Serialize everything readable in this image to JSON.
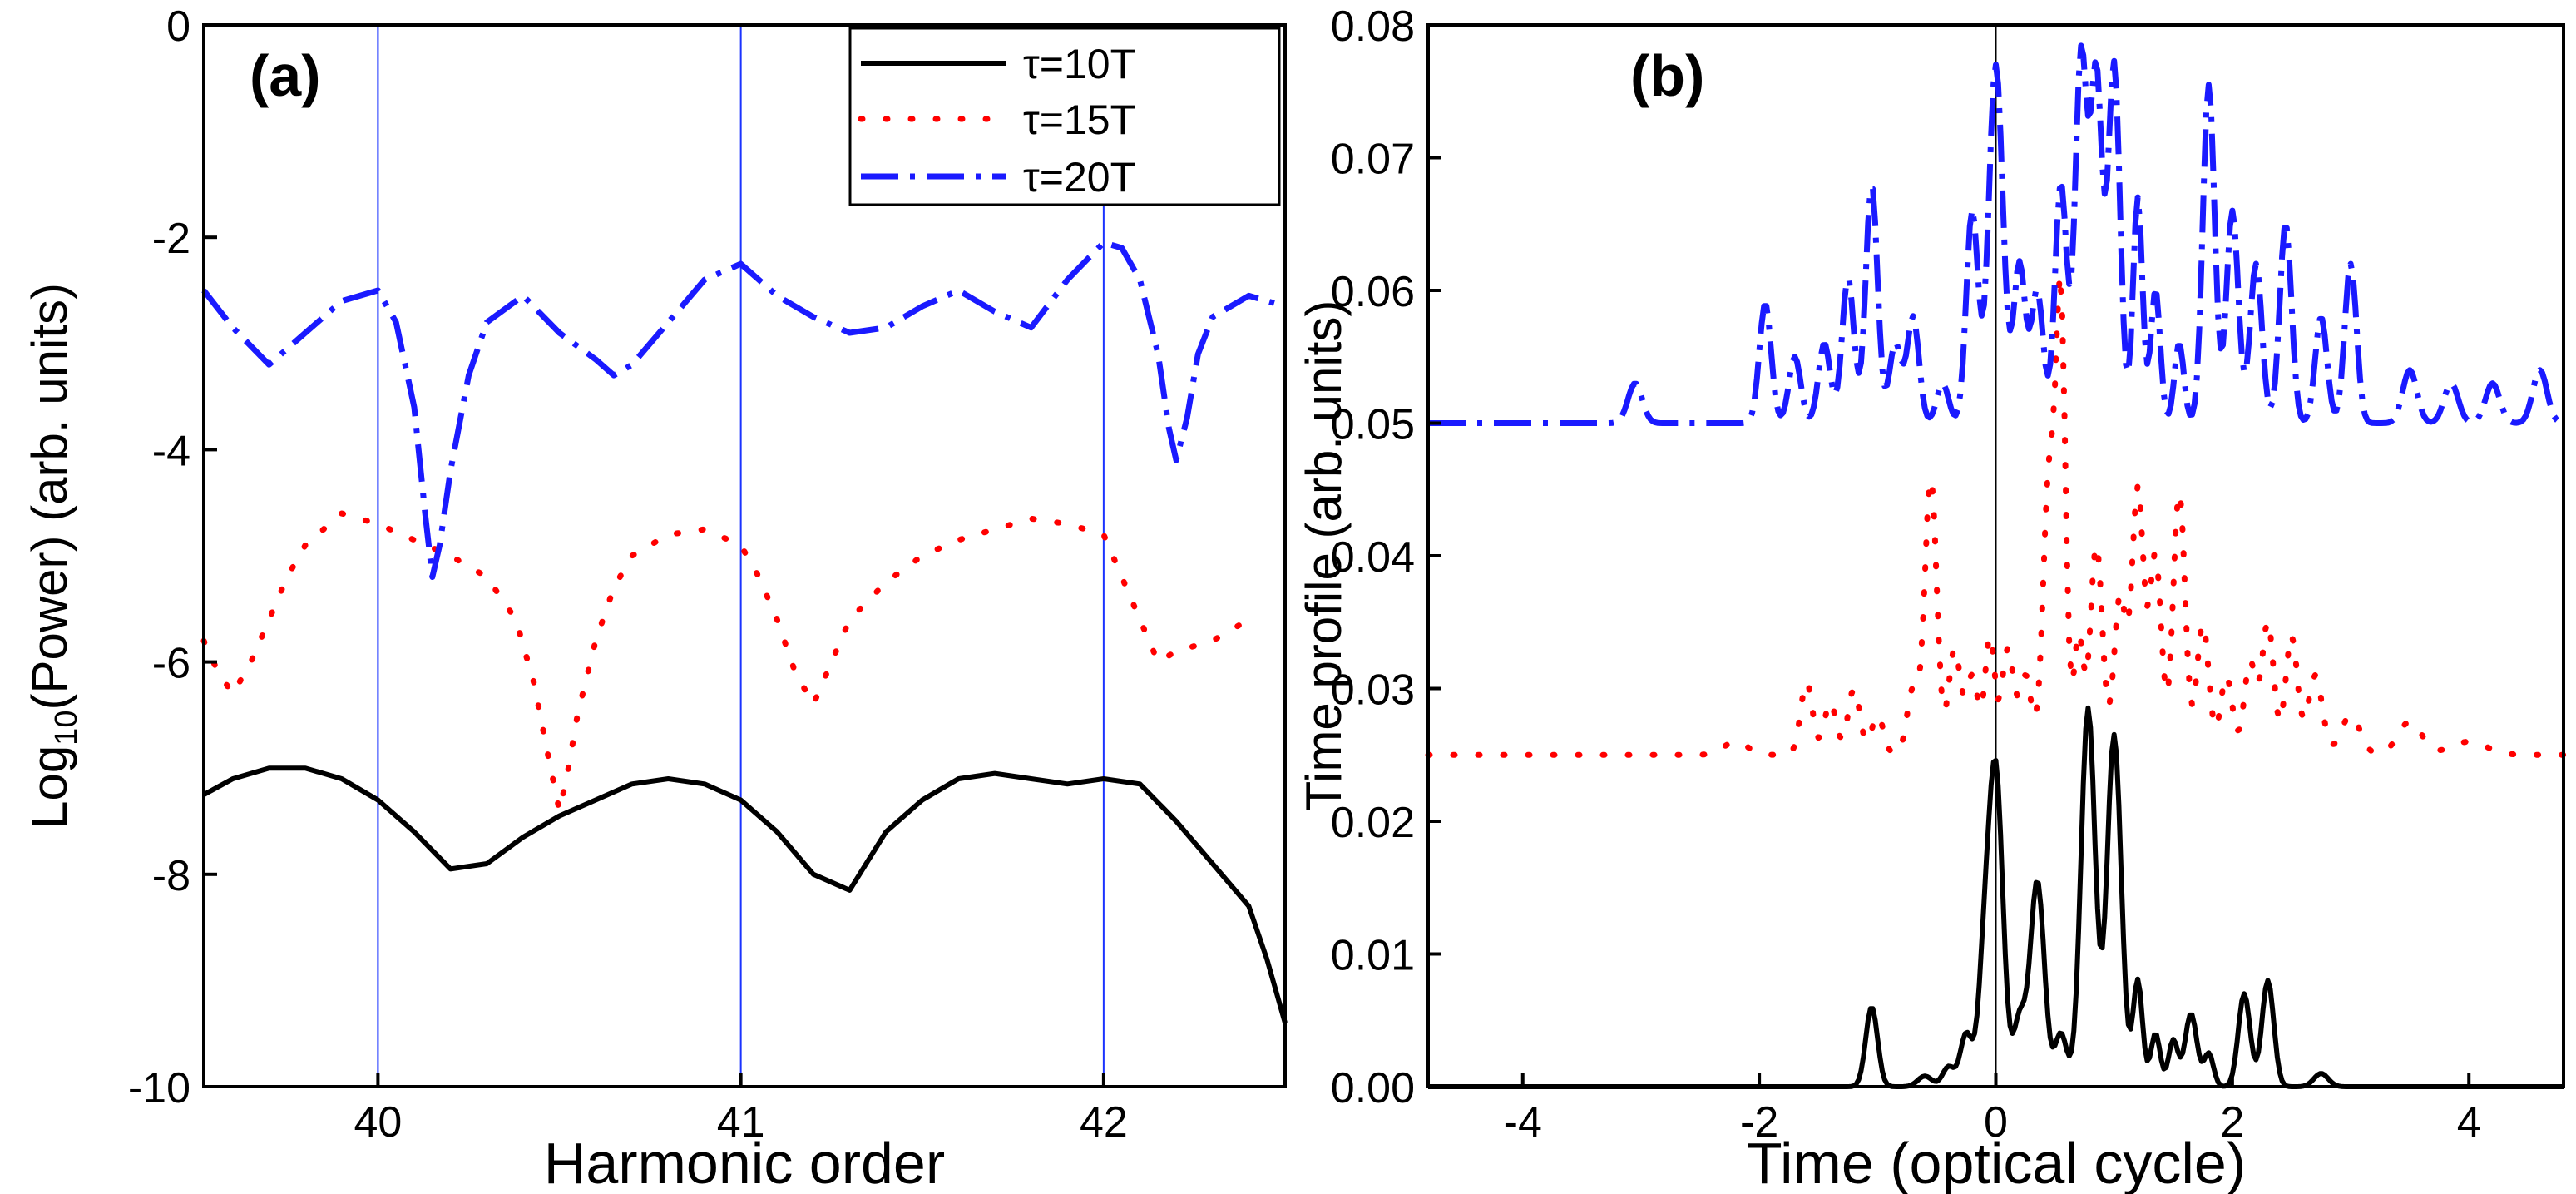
{
  "chart_data": [
    {
      "id": "a",
      "type": "line",
      "panel_label": "(a)",
      "xlabel": "Harmonic order",
      "ylabel": {
        "prefix": "Log",
        "subscript": "10",
        "suffix": "(Power) (arb. units)"
      },
      "xlim": [
        39.52,
        42.5
      ],
      "ylim": [
        -10,
        0
      ],
      "xticks": [
        40,
        41,
        42
      ],
      "yticks": [
        0,
        -2,
        -4,
        -6,
        -8,
        -10
      ],
      "xtick_labels": [
        "40",
        "41",
        "42"
      ],
      "ytick_labels": [
        "0",
        "-2",
        "-4",
        "-6",
        "-8",
        "-10"
      ],
      "reference_lines_x": [
        40,
        41,
        42
      ],
      "reference_line_color": "#1a33ff",
      "legend": {
        "position": "top-right",
        "entries": [
          "τ=10T",
          "τ=15T",
          "τ=20T"
        ]
      },
      "series": [
        {
          "name": "τ=10T",
          "color": "#000000",
          "style": "solid",
          "x": [
            39.52,
            39.6,
            39.7,
            39.8,
            39.9,
            40.0,
            40.1,
            40.2,
            40.3,
            40.4,
            40.5,
            40.6,
            40.7,
            40.8,
            40.9,
            41.0,
            41.1,
            41.2,
            41.3,
            41.4,
            41.5,
            41.6,
            41.7,
            41.8,
            41.9,
            42.0,
            42.1,
            42.2,
            42.3,
            42.4,
            42.45,
            42.5
          ],
          "y": [
            -7.25,
            -7.1,
            -7.0,
            -7.0,
            -7.1,
            -7.3,
            -7.6,
            -7.95,
            -7.9,
            -7.65,
            -7.45,
            -7.3,
            -7.15,
            -7.1,
            -7.15,
            -7.3,
            -7.6,
            -8.0,
            -8.15,
            -7.6,
            -7.3,
            -7.1,
            -7.05,
            -7.1,
            -7.15,
            -7.1,
            -7.15,
            -7.5,
            -7.9,
            -8.3,
            -8.8,
            -9.4
          ]
        },
        {
          "name": "τ=15T",
          "color": "#ff0000",
          "style": "dotted",
          "x": [
            39.52,
            39.56,
            39.6,
            39.65,
            39.7,
            39.75,
            39.8,
            39.9,
            40.0,
            40.1,
            40.2,
            40.3,
            40.38,
            40.43,
            40.47,
            40.5,
            40.52,
            40.55,
            40.6,
            40.65,
            40.7,
            40.8,
            40.9,
            41.0,
            41.05,
            41.1,
            41.15,
            41.2,
            41.25,
            41.3,
            41.4,
            41.5,
            41.6,
            41.7,
            41.8,
            41.9,
            42.0,
            42.05,
            42.1,
            42.15,
            42.2,
            42.3,
            42.4
          ],
          "y": [
            -5.8,
            -6.1,
            -6.3,
            -6.0,
            -5.6,
            -5.2,
            -4.9,
            -4.6,
            -4.7,
            -4.85,
            -5.0,
            -5.2,
            -5.6,
            -6.2,
            -6.9,
            -7.4,
            -7.1,
            -6.5,
            -5.8,
            -5.3,
            -5.0,
            -4.8,
            -4.75,
            -4.9,
            -5.2,
            -5.6,
            -6.1,
            -6.4,
            -6.0,
            -5.6,
            -5.25,
            -5.0,
            -4.85,
            -4.75,
            -4.65,
            -4.7,
            -4.8,
            -5.2,
            -5.6,
            -6.0,
            -5.9,
            -5.8,
            -5.6
          ]
        },
        {
          "name": "τ=20T",
          "color": "#1a1aff",
          "style": "dashdot",
          "x": [
            39.52,
            39.6,
            39.7,
            39.8,
            39.9,
            40.0,
            40.05,
            40.1,
            40.13,
            40.15,
            40.17,
            40.2,
            40.25,
            40.3,
            40.4,
            40.5,
            40.6,
            40.65,
            40.7,
            40.8,
            40.9,
            41.0,
            41.1,
            41.2,
            41.3,
            41.4,
            41.5,
            41.6,
            41.7,
            41.8,
            41.9,
            42.0,
            42.05,
            42.1,
            42.15,
            42.18,
            42.2,
            42.23,
            42.26,
            42.3,
            42.4,
            42.5
          ],
          "y": [
            -2.5,
            -2.85,
            -3.2,
            -2.9,
            -2.6,
            -2.5,
            -2.8,
            -3.6,
            -4.6,
            -5.2,
            -4.9,
            -4.2,
            -3.3,
            -2.8,
            -2.55,
            -2.9,
            -3.15,
            -3.3,
            -3.2,
            -2.8,
            -2.4,
            -2.25,
            -2.55,
            -2.75,
            -2.9,
            -2.85,
            -2.65,
            -2.5,
            -2.7,
            -2.85,
            -2.4,
            -2.05,
            -2.1,
            -2.4,
            -3.1,
            -3.8,
            -4.1,
            -3.7,
            -3.1,
            -2.75,
            -2.55,
            -2.65
          ]
        }
      ]
    },
    {
      "id": "b",
      "type": "line",
      "panel_label": "(b)",
      "xlabel": "Time (optical cycle)",
      "ylabel": "Time profile (arb. units)",
      "xlim": [
        -4.8,
        4.8
      ],
      "ylim": [
        0,
        0.08
      ],
      "xticks": [
        -4,
        -2,
        0,
        2,
        4
      ],
      "yticks": [
        0.0,
        0.01,
        0.02,
        0.03,
        0.04,
        0.05,
        0.06,
        0.07,
        0.08
      ],
      "xtick_labels": [
        "-4",
        "-2",
        "0",
        "2",
        "4"
      ],
      "ytick_labels": [
        "0.00",
        "0.01",
        "0.02",
        "0.03",
        "0.04",
        "0.05",
        "0.06",
        "0.07",
        "0.08"
      ],
      "reference_lines_x": [
        0
      ],
      "reference_line_color": "#000000",
      "series": [
        {
          "name": "τ=10T",
          "color": "#000000",
          "style": "solid",
          "baseline": 0.0,
          "peaks": [
            [
              -1.05,
              0.006,
              0.05
            ],
            [
              -0.6,
              0.0008,
              0.06
            ],
            [
              -0.4,
              0.0015,
              0.05
            ],
            [
              -0.25,
              0.004,
              0.05
            ],
            [
              -0.1,
              0.008,
              0.05
            ],
            [
              0.0,
              0.0235,
              0.06
            ],
            [
              0.2,
              0.005,
              0.05
            ],
            [
              0.35,
              0.0155,
              0.06
            ],
            [
              0.55,
              0.004,
              0.05
            ],
            [
              0.78,
              0.0285,
              0.06
            ],
            [
              1.0,
              0.0265,
              0.06
            ],
            [
              1.2,
              0.008,
              0.04
            ],
            [
              1.35,
              0.004,
              0.04
            ],
            [
              1.5,
              0.0035,
              0.04
            ],
            [
              1.65,
              0.0055,
              0.05
            ],
            [
              1.8,
              0.0025,
              0.04
            ],
            [
              2.1,
              0.007,
              0.05
            ],
            [
              2.3,
              0.008,
              0.05
            ],
            [
              2.75,
              0.001,
              0.06
            ]
          ]
        },
        {
          "name": "τ=15T",
          "color": "#ff0000",
          "style": "dotted",
          "baseline": 0.025,
          "peaks": [
            [
              -2.2,
              0.001,
              0.1
            ],
            [
              -1.6,
              0.0055,
              0.05
            ],
            [
              -1.4,
              0.004,
              0.05
            ],
            [
              -1.2,
              0.005,
              0.05
            ],
            [
              -1.0,
              0.003,
              0.05
            ],
            [
              -0.7,
              0.005,
              0.05
            ],
            [
              -0.55,
              0.021,
              0.05
            ],
            [
              -0.35,
              0.008,
              0.05
            ],
            [
              -0.2,
              0.006,
              0.05
            ],
            [
              -0.05,
              0.009,
              0.04
            ],
            [
              0.1,
              0.008,
              0.05
            ],
            [
              0.25,
              0.006,
              0.05
            ],
            [
              0.45,
              0.021,
              0.05
            ],
            [
              0.55,
              0.033,
              0.04
            ],
            [
              0.7,
              0.009,
              0.04
            ],
            [
              0.85,
              0.016,
              0.05
            ],
            [
              1.05,
              0.012,
              0.05
            ],
            [
              1.2,
              0.02,
              0.05
            ],
            [
              1.35,
              0.015,
              0.05
            ],
            [
              1.55,
              0.02,
              0.05
            ],
            [
              1.75,
              0.01,
              0.05
            ],
            [
              1.95,
              0.006,
              0.05
            ],
            [
              2.15,
              0.007,
              0.05
            ],
            [
              2.3,
              0.01,
              0.05
            ],
            [
              2.5,
              0.009,
              0.05
            ],
            [
              2.7,
              0.006,
              0.06
            ],
            [
              3.0,
              0.003,
              0.08
            ],
            [
              3.5,
              0.0025,
              0.1
            ],
            [
              4.0,
              0.001,
              0.15
            ]
          ]
        },
        {
          "name": "τ=20T",
          "color": "#1a1aff",
          "style": "dashdot",
          "baseline": 0.05,
          "peaks": [
            [
              -3.05,
              0.003,
              0.06
            ],
            [
              -1.95,
              0.009,
              0.05
            ],
            [
              -1.7,
              0.005,
              0.05
            ],
            [
              -1.45,
              0.006,
              0.05
            ],
            [
              -1.25,
              0.011,
              0.05
            ],
            [
              -1.05,
              0.018,
              0.05
            ],
            [
              -0.85,
              0.006,
              0.05
            ],
            [
              -0.7,
              0.008,
              0.05
            ],
            [
              -0.45,
              0.003,
              0.05
            ],
            [
              -0.2,
              0.016,
              0.05
            ],
            [
              0.0,
              0.027,
              0.06
            ],
            [
              0.2,
              0.012,
              0.05
            ],
            [
              0.35,
              0.01,
              0.05
            ],
            [
              0.55,
              0.018,
              0.05
            ],
            [
              0.72,
              0.0275,
              0.05
            ],
            [
              0.85,
              0.026,
              0.05
            ],
            [
              1.0,
              0.027,
              0.05
            ],
            [
              1.2,
              0.017,
              0.04
            ],
            [
              1.35,
              0.01,
              0.04
            ],
            [
              1.55,
              0.006,
              0.04
            ],
            [
              1.8,
              0.0255,
              0.05
            ],
            [
              2.0,
              0.016,
              0.05
            ],
            [
              2.2,
              0.012,
              0.05
            ],
            [
              2.45,
              0.015,
              0.05
            ],
            [
              2.75,
              0.008,
              0.05
            ],
            [
              3.0,
              0.012,
              0.05
            ],
            [
              3.5,
              0.004,
              0.06
            ],
            [
              3.85,
              0.003,
              0.06
            ],
            [
              4.2,
              0.003,
              0.06
            ],
            [
              4.6,
              0.004,
              0.06
            ]
          ]
        }
      ]
    }
  ]
}
